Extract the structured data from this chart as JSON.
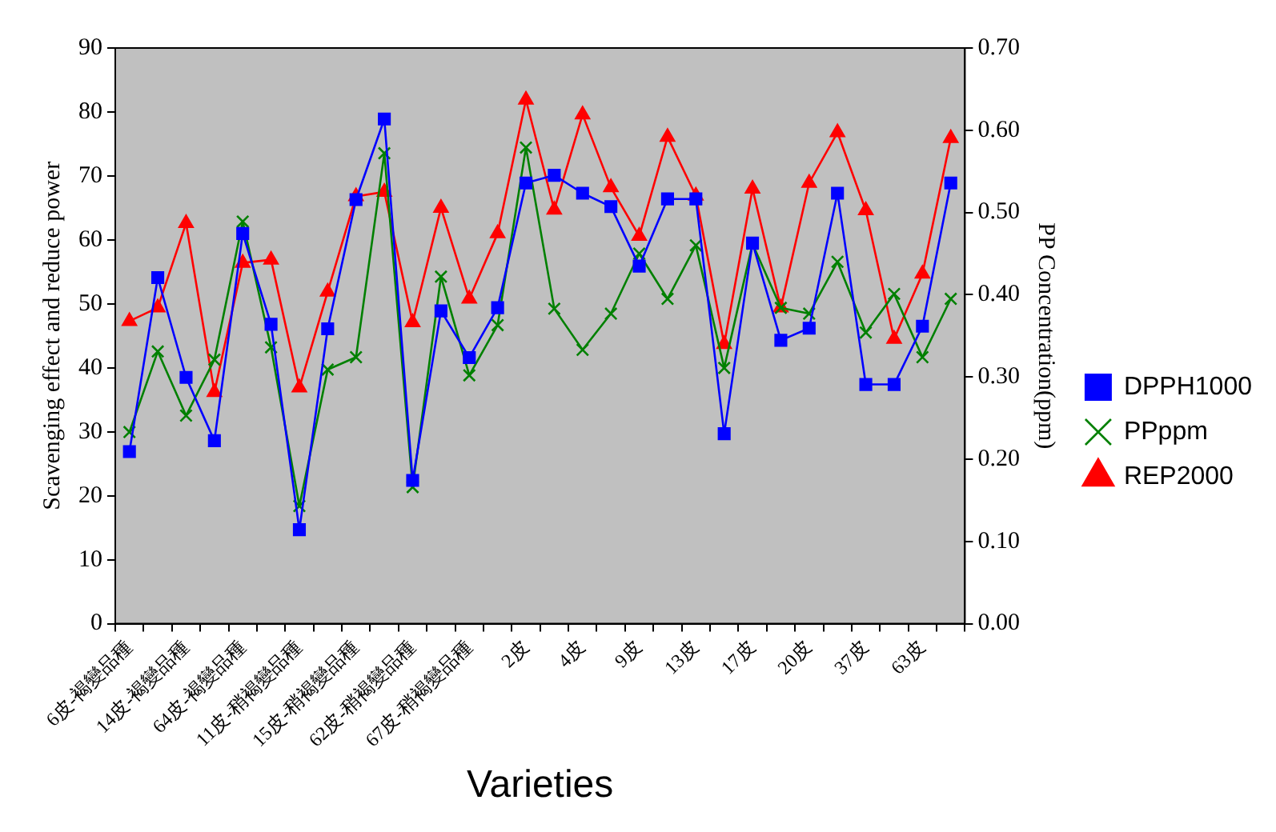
{
  "chart_data": {
    "type": "line",
    "xlabel": "Varieties",
    "ylabel": "Scavenging effect and reduce power",
    "y2label": "PP Concentration(ppm)",
    "categories": [
      "6皮-褐變品種",
      null,
      "14皮-褐變品種",
      null,
      "64皮-褐變品種",
      null,
      "11皮-稍褐變品種",
      null,
      "15皮-稍褐變品種",
      null,
      "62皮-稍褐變品種",
      null,
      "67皮-稍褐變品種",
      null,
      "2皮",
      null,
      "4皮",
      null,
      "9皮",
      null,
      "13皮",
      null,
      "17皮",
      null,
      "20皮",
      null,
      "37皮",
      null,
      "63皮",
      null
    ],
    "series": [
      {
        "name": "DPPH1000",
        "color": "#0000ff",
        "marker": "square",
        "values": [
          26.9,
          54.1,
          38.5,
          28.6,
          61,
          46.8,
          14.7,
          46.1,
          66.3,
          78.9,
          22.4,
          48.9,
          41.6,
          49.4,
          68.9,
          70.1,
          67.3,
          65.2,
          55.9,
          66.4,
          66.4,
          29.7,
          59.5,
          44.3,
          46.2,
          67.3,
          37.4,
          37.4,
          46.5,
          68.9
        ]
      },
      {
        "name": "PPppm",
        "color": "#008000",
        "marker": "cross",
        "axis": "y2",
        "values": [
          0.233,
          0.331,
          0.253,
          0.321,
          0.489,
          0.336,
          0.143,
          0.309,
          0.324,
          0.572,
          0.166,
          0.422,
          0.302,
          0.363,
          0.579,
          0.383,
          0.333,
          0.377,
          0.45,
          0.395,
          0.46,
          0.311,
          0.462,
          0.384,
          0.377,
          0.44,
          0.354,
          0.401,
          0.324,
          0.395
        ]
      },
      {
        "name": "REP2000",
        "color": "#ff0000",
        "marker": "triangle",
        "values": [
          47.3,
          49.4,
          62.6,
          36.2,
          56.4,
          56.9,
          36.9,
          51.9,
          66.8,
          67.5,
          47.1,
          65,
          50.8,
          61,
          81.9,
          64.7,
          79.6,
          68.2,
          60.6,
          76.1,
          66.9,
          43.7,
          68,
          49.4,
          68.9,
          76.8,
          64.6,
          44.5,
          54.7,
          75.9
        ]
      }
    ],
    "ylim": [
      0,
      90
    ],
    "yticks": [
      0,
      10,
      20,
      30,
      40,
      50,
      60,
      70,
      80,
      90
    ],
    "y2lim": [
      0,
      0.7
    ],
    "y2ticks": [
      {
        "value": 0,
        "label": "0.00"
      },
      {
        "value": 0.1,
        "label": "0.10"
      },
      {
        "value": 0.2,
        "label": "0.20"
      },
      {
        "value": 0.3,
        "label": "0.30"
      },
      {
        "value": 0.4,
        "label": "0.40"
      },
      {
        "value": 0.5,
        "label": "0.50"
      },
      {
        "value": 0.6,
        "label": "0.60"
      },
      {
        "value": 0.7,
        "label": "0.70"
      }
    ],
    "grid": false,
    "legend": "right",
    "line_style": "solid"
  }
}
